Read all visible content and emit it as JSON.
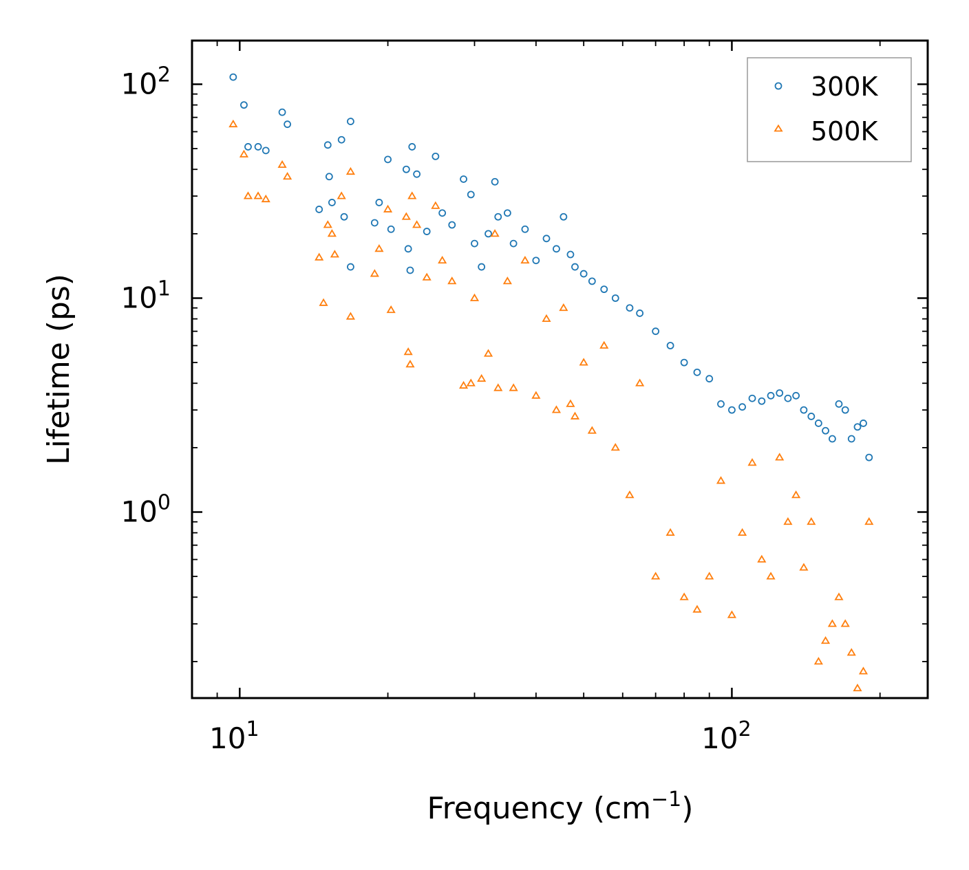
{
  "chart_data": {
    "type": "scatter",
    "xscale": "log",
    "yscale": "log",
    "xlabel": "Frequency (cm",
    "xlabel_sup": "−1",
    "xlabel_close": ")",
    "ylabel": "Lifetime (ps)",
    "xlim": [
      8,
      250
    ],
    "ylim": [
      0.135,
      160
    ],
    "x_ticks": [
      {
        "value": 10,
        "base": "10",
        "exp": "1"
      },
      {
        "value": 100,
        "base": "10",
        "exp": "2"
      }
    ],
    "y_ticks": [
      {
        "value": 1,
        "base": "10",
        "exp": "0"
      },
      {
        "value": 10,
        "base": "10",
        "exp": "1"
      },
      {
        "value": 100,
        "base": "10",
        "exp": "2"
      }
    ],
    "legend_position": "top-right",
    "series": [
      {
        "name": "300K",
        "marker": "circle",
        "color": "#1f77b4",
        "points": [
          [
            9.7,
            108
          ],
          [
            10.2,
            80
          ],
          [
            10.4,
            51
          ],
          [
            10.9,
            51
          ],
          [
            11.3,
            49
          ],
          [
            12.2,
            74
          ],
          [
            12.5,
            65
          ],
          [
            14.5,
            26
          ],
          [
            15.1,
            52
          ],
          [
            15.4,
            28
          ],
          [
            16.1,
            55
          ],
          [
            16.8,
            14
          ],
          [
            16.8,
            67
          ],
          [
            15.2,
            37
          ],
          [
            16.3,
            24
          ],
          [
            18.8,
            22.5
          ],
          [
            19.2,
            28
          ],
          [
            20.0,
            44.5
          ],
          [
            20.3,
            21
          ],
          [
            21.8,
            40
          ],
          [
            22.4,
            51
          ],
          [
            22.2,
            13.5
          ],
          [
            22.9,
            38
          ],
          [
            22.0,
            17
          ],
          [
            24.0,
            20.5
          ],
          [
            25.0,
            46
          ],
          [
            25.8,
            25
          ],
          [
            27.0,
            22
          ],
          [
            28.5,
            36
          ],
          [
            29.5,
            30.5
          ],
          [
            30.0,
            18
          ],
          [
            31.0,
            14
          ],
          [
            32.0,
            20
          ],
          [
            33.0,
            35
          ],
          [
            33.5,
            24
          ],
          [
            35.0,
            25
          ],
          [
            36.0,
            18
          ],
          [
            38.0,
            21
          ],
          [
            40.0,
            15
          ],
          [
            42.0,
            19
          ],
          [
            44.0,
            17
          ],
          [
            45.5,
            24
          ],
          [
            47.0,
            16
          ],
          [
            48.0,
            14
          ],
          [
            50.0,
            13
          ],
          [
            52.0,
            12
          ],
          [
            55.0,
            11
          ],
          [
            58.0,
            10
          ],
          [
            62.0,
            9
          ],
          [
            65.0,
            8.5
          ],
          [
            70.0,
            7
          ],
          [
            75.0,
            6
          ],
          [
            80.0,
            5
          ],
          [
            85.0,
            4.5
          ],
          [
            90.0,
            4.2
          ],
          [
            95.0,
            3.2
          ],
          [
            100.0,
            3.0
          ],
          [
            105.0,
            3.1
          ],
          [
            110.0,
            3.4
          ],
          [
            115.0,
            3.3
          ],
          [
            120.0,
            3.5
          ],
          [
            125.0,
            3.6
          ],
          [
            130.0,
            3.4
          ],
          [
            135.0,
            3.5
          ],
          [
            140.0,
            3.0
          ],
          [
            145.0,
            2.8
          ],
          [
            150.0,
            2.6
          ],
          [
            155.0,
            2.4
          ],
          [
            160.0,
            2.2
          ],
          [
            165.0,
            3.2
          ],
          [
            170.0,
            3.0
          ],
          [
            175.0,
            2.2
          ],
          [
            180.0,
            2.5
          ],
          [
            185.0,
            2.6
          ],
          [
            190.0,
            1.8
          ]
        ]
      },
      {
        "name": "500K",
        "marker": "triangle",
        "color": "#ff7f0e",
        "points": [
          [
            9.7,
            65
          ],
          [
            10.2,
            47
          ],
          [
            10.4,
            30
          ],
          [
            10.9,
            30
          ],
          [
            11.3,
            29
          ],
          [
            12.2,
            42
          ],
          [
            12.5,
            37
          ],
          [
            14.5,
            15.5
          ],
          [
            14.8,
            9.5
          ],
          [
            15.1,
            22
          ],
          [
            15.4,
            20
          ],
          [
            16.1,
            30
          ],
          [
            16.8,
            8.2
          ],
          [
            16.8,
            39
          ],
          [
            15.6,
            16
          ],
          [
            18.8,
            13
          ],
          [
            19.2,
            17
          ],
          [
            20.0,
            26
          ],
          [
            20.3,
            8.8
          ],
          [
            21.8,
            24
          ],
          [
            22.4,
            30
          ],
          [
            22.2,
            4.9
          ],
          [
            22.9,
            22
          ],
          [
            22.0,
            5.6
          ],
          [
            24.0,
            12.5
          ],
          [
            25.0,
            27
          ],
          [
            25.8,
            15
          ],
          [
            27.0,
            12
          ],
          [
            28.5,
            3.9
          ],
          [
            29.5,
            4.0
          ],
          [
            30.0,
            10
          ],
          [
            31.0,
            4.2
          ],
          [
            32.0,
            5.5
          ],
          [
            33.0,
            20
          ],
          [
            33.5,
            3.8
          ],
          [
            35.0,
            12
          ],
          [
            36.0,
            3.8
          ],
          [
            38.0,
            15
          ],
          [
            40.0,
            3.5
          ],
          [
            42.0,
            8
          ],
          [
            44.0,
            3.0
          ],
          [
            45.5,
            9
          ],
          [
            47.0,
            3.2
          ],
          [
            48.0,
            2.8
          ],
          [
            50.0,
            5
          ],
          [
            52.0,
            2.4
          ],
          [
            55.0,
            6
          ],
          [
            58.0,
            2.0
          ],
          [
            62.0,
            1.2
          ],
          [
            65.0,
            4
          ],
          [
            70.0,
            0.5
          ],
          [
            75.0,
            0.8
          ],
          [
            80.0,
            0.4
          ],
          [
            85.0,
            0.35
          ],
          [
            90.0,
            0.5
          ],
          [
            95.0,
            1.4
          ],
          [
            100.0,
            0.33
          ],
          [
            105.0,
            0.8
          ],
          [
            110.0,
            1.7
          ],
          [
            115.0,
            0.6
          ],
          [
            120.0,
            0.5
          ],
          [
            125.0,
            1.8
          ],
          [
            130.0,
            0.9
          ],
          [
            135.0,
            1.2
          ],
          [
            140.0,
            0.55
          ],
          [
            145.0,
            0.9
          ],
          [
            150.0,
            0.2
          ],
          [
            155.0,
            0.25
          ],
          [
            160.0,
            0.3
          ],
          [
            165.0,
            0.4
          ],
          [
            170.0,
            0.3
          ],
          [
            175.0,
            0.22
          ],
          [
            180.0,
            0.15
          ],
          [
            185.0,
            0.18
          ],
          [
            190.0,
            0.9
          ]
        ]
      }
    ]
  }
}
